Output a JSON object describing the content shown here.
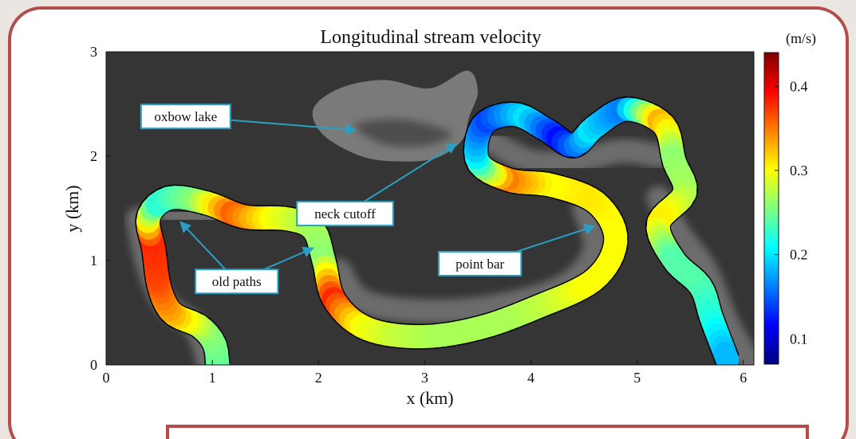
{
  "chart_data": {
    "type": "heatmap",
    "title": "Longitudinal stream velocity",
    "xlabel": "x (km)",
    "ylabel": "y (km)",
    "xlim": [
      0,
      6.1
    ],
    "ylim": [
      0,
      3
    ],
    "xticks": [
      "0",
      "1",
      "2",
      "3",
      "4",
      "5",
      "6"
    ],
    "yticks": [
      "0",
      "1",
      "2",
      "3"
    ],
    "colorbar": {
      "unit": "(m/s)",
      "range": [
        0.07,
        0.44
      ],
      "ticks": [
        "0.1",
        "0.2",
        "0.3",
        "0.4"
      ],
      "tick_values": [
        0.1,
        0.2,
        0.3,
        0.4
      ],
      "colormap": "jet"
    },
    "background_color": "#353535",
    "annotations": [
      {
        "text": "oxbow lake",
        "box_at": [
          0.75,
          2.38
        ],
        "points_to": [
          2.35,
          2.25
        ]
      },
      {
        "text": "neck cutoff",
        "box_at": [
          2.25,
          1.45
        ],
        "points_to": [
          3.3,
          2.12
        ]
      },
      {
        "text": "old paths",
        "box_at": [
          1.23,
          0.8
        ],
        "points_to": [
          [
            0.7,
            1.37
          ],
          [
            1.95,
            1.12
          ]
        ]
      },
      {
        "text": "point bar",
        "box_at": [
          3.52,
          0.97
        ],
        "points_to": [
          4.6,
          1.33
        ]
      }
    ],
    "river_centerline": [
      [
        1.05,
        0.0
      ],
      [
        1.02,
        0.2
      ],
      [
        0.88,
        0.37
      ],
      [
        0.62,
        0.5
      ],
      [
        0.5,
        0.75
      ],
      [
        0.45,
        1.1
      ],
      [
        0.4,
        1.42
      ],
      [
        0.6,
        1.6
      ],
      [
        0.95,
        1.55
      ],
      [
        1.3,
        1.42
      ],
      [
        1.7,
        1.4
      ],
      [
        1.95,
        1.3
      ],
      [
        2.05,
        1.0
      ],
      [
        2.15,
        0.62
      ],
      [
        2.45,
        0.35
      ],
      [
        2.95,
        0.27
      ],
      [
        3.5,
        0.35
      ],
      [
        4.05,
        0.55
      ],
      [
        4.6,
        0.82
      ],
      [
        4.8,
        1.2
      ],
      [
        4.62,
        1.55
      ],
      [
        4.2,
        1.72
      ],
      [
        3.8,
        1.77
      ],
      [
        3.5,
        1.95
      ],
      [
        3.55,
        2.3
      ],
      [
        3.85,
        2.4
      ],
      [
        4.15,
        2.25
      ],
      [
        4.4,
        2.1
      ],
      [
        4.6,
        2.28
      ],
      [
        4.9,
        2.45
      ],
      [
        5.25,
        2.3
      ],
      [
        5.35,
        1.95
      ],
      [
        5.45,
        1.65
      ],
      [
        5.2,
        1.35
      ],
      [
        5.35,
        1.0
      ],
      [
        5.6,
        0.75
      ],
      [
        5.7,
        0.45
      ],
      [
        5.85,
        0.05
      ]
    ],
    "velocity_profile": [
      0.24,
      0.26,
      0.33,
      0.37,
      0.38,
      0.22,
      0.26,
      0.36,
      0.3,
      0.27,
      0.26,
      0.38,
      0.3,
      0.28,
      0.27,
      0.27,
      0.27,
      0.28,
      0.3,
      0.3,
      0.3,
      0.31,
      0.3,
      0.35,
      0.2,
      0.14,
      0.2,
      0.12,
      0.2,
      0.16,
      0.33,
      0.26,
      0.27,
      0.31,
      0.24,
      0.24,
      0.22,
      0.18
    ],
    "old_paths": [
      [
        [
          0.3,
          1.4
        ],
        [
          0.38,
          1.0
        ],
        [
          0.55,
          0.6
        ],
        [
          0.85,
          0.35
        ],
        [
          0.97,
          0.0
        ]
      ],
      [
        [
          0.6,
          1.45
        ],
        [
          1.0,
          1.45
        ],
        [
          1.5,
          1.45
        ],
        [
          1.8,
          1.4
        ]
      ],
      [
        [
          4.5,
          1.5
        ],
        [
          4.6,
          1.1
        ],
        [
          4.3,
          0.75
        ],
        [
          3.6,
          0.55
        ],
        [
          2.9,
          0.52
        ],
        [
          2.4,
          0.62
        ],
        [
          2.2,
          0.9
        ]
      ],
      [
        [
          3.6,
          2.15
        ],
        [
          4.0,
          1.95
        ],
        [
          4.4,
          1.95
        ],
        [
          4.85,
          2.05
        ],
        [
          5.2,
          2.0
        ]
      ],
      [
        [
          5.2,
          1.6
        ],
        [
          5.4,
          1.25
        ],
        [
          5.65,
          0.9
        ],
        [
          5.85,
          0.4
        ],
        [
          6.05,
          0.05
        ]
      ]
    ],
    "oxbow_lake": [
      [
        2.62,
        2.73
      ],
      [
        3.05,
        2.65
      ],
      [
        3.4,
        2.82
      ],
      [
        3.5,
        2.62
      ],
      [
        3.42,
        2.38
      ],
      [
        3.35,
        2.15
      ],
      [
        3.1,
        1.98
      ],
      [
        2.75,
        1.95
      ],
      [
        2.4,
        2.0
      ],
      [
        2.05,
        2.2
      ],
      [
        1.95,
        2.45
      ],
      [
        2.2,
        2.65
      ]
    ]
  }
}
